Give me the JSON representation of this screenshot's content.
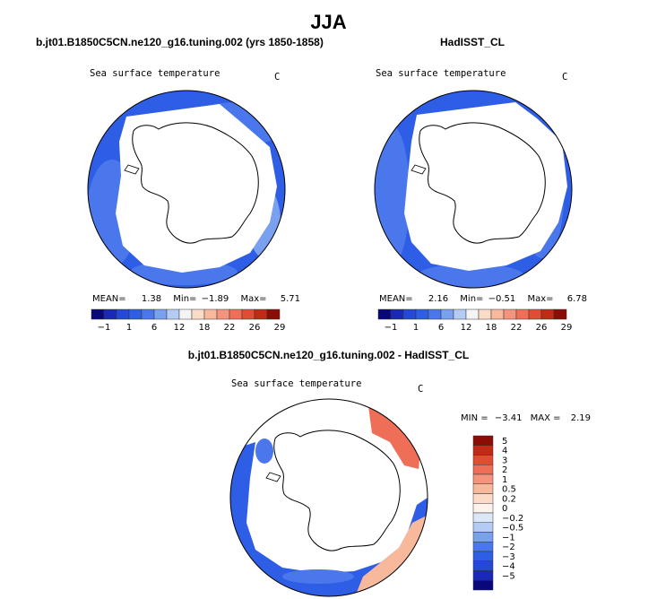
{
  "page": {
    "title": "JJA",
    "left_title": "b.jt01.B1850C5CN.ne120_g16.tuning.002 (yrs 1850-1858)",
    "right_title": "HadISST_CL",
    "diff_title": "b.jt01.B1850C5CN.ne120_g16.tuning.002 - HadISST_CL"
  },
  "colors": {
    "abs_scale": [
      "#08087a",
      "#1a28b8",
      "#2448d8",
      "#2f5ee6",
      "#4a78ec",
      "#7aa0f0",
      "#b4ccf4",
      "#f4f4f4",
      "#fcdac8",
      "#f8b89c",
      "#f4947c",
      "#ee6e58",
      "#e04c34",
      "#c22a18",
      "#8c0c06"
    ],
    "diff_scale": [
      "#08087a",
      "#1a28b8",
      "#2448d8",
      "#2f5ee6",
      "#4a78ec",
      "#7aa0f0",
      "#b4ccf4",
      "#dce8f8",
      "#fff2ea",
      "#fcdac8",
      "#f8b89c",
      "#f4947c",
      "#ee6e58",
      "#e04c34",
      "#c22a18",
      "#8c0c06"
    ],
    "land": "#ffffff",
    "outline": "#000000"
  },
  "chart_data": [
    {
      "type": "heatmap",
      "projection": "south-polar-stereographic",
      "title": "Sea surface temperature",
      "units": "C",
      "stats": {
        "mean_label": "MEAN=",
        "mean": "1.38",
        "min_label": "Min=",
        "min": "−1.89",
        "max_label": "Max=",
        "max": "5.71"
      },
      "colorbar": {
        "orientation": "horizontal",
        "ticks": [
          "−1",
          "1",
          "6",
          "12",
          "18",
          "22",
          "26",
          "29"
        ]
      }
    },
    {
      "type": "heatmap",
      "projection": "south-polar-stereographic",
      "title": "Sea surface temperature",
      "units": "C",
      "stats": {
        "mean_label": "MEAN=",
        "mean": "2.16",
        "min_label": "Min=",
        "min": "−0.51",
        "max_label": "Max=",
        "max": "6.78"
      },
      "colorbar": {
        "orientation": "horizontal",
        "ticks": [
          "−1",
          "1",
          "6",
          "12",
          "18",
          "22",
          "26",
          "29"
        ]
      }
    },
    {
      "type": "heatmap",
      "projection": "south-polar-stereographic",
      "title": "Sea surface temperature",
      "units": "C",
      "stats": {
        "min_label": "MIN =",
        "min": "−3.41",
        "max_label": "MAX =",
        "max": "2.19"
      },
      "colorbar": {
        "orientation": "vertical",
        "ticks": [
          "5",
          "4",
          "3",
          "2",
          "1",
          "0.5",
          "0.2",
          "0",
          "−0.2",
          "−0.5",
          "−1",
          "−2",
          "−3",
          "−4",
          "−5"
        ]
      }
    }
  ]
}
